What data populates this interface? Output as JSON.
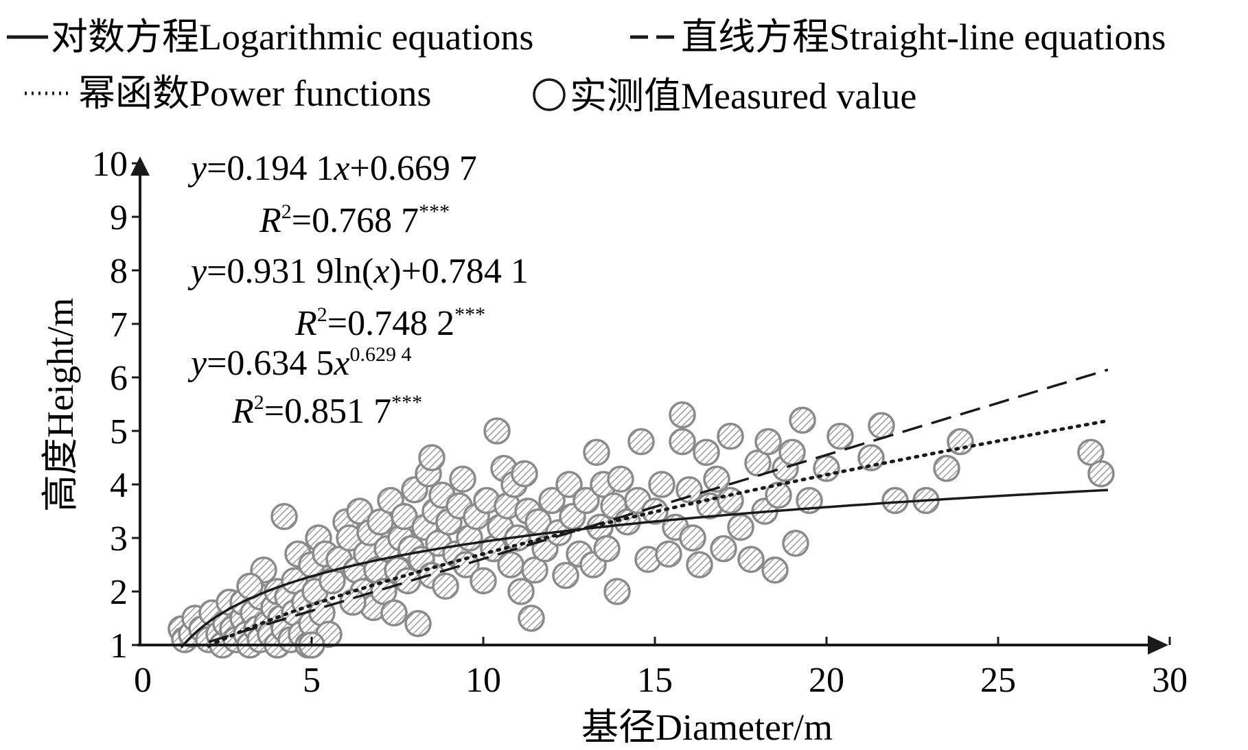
{
  "legend": {
    "log_label": "对数方程Logarithmic equations",
    "linear_label": "直线方程Straight-line equations",
    "power_label": "幂函数Power functions",
    "measured_label": "实测值Measured value"
  },
  "equations": {
    "linear_y": "y",
    "linear_rhs": "=0.194 1",
    "linear_x": "x",
    "linear_tail": "+0.669 7",
    "linear_r_R": "R",
    "linear_r_exp": "2",
    "linear_r_val": "=0.768 7",
    "linear_r_stars": "***",
    "log_y": "y",
    "log_rhs": "=0.931 9ln(",
    "log_x": "x",
    "log_tail": ")+0.784 1",
    "log_r_R": "R",
    "log_r_exp": "2",
    "log_r_val": "=0.748 2",
    "log_r_stars": "***",
    "power_y": "y",
    "power_rhs": "=0.634 5",
    "power_x": "x",
    "power_exp": "0.629 4",
    "power_r_R": "R",
    "power_r_exp": "2",
    "power_r_val": "=0.851 7",
    "power_r_stars": "***"
  },
  "chart_data": {
    "type": "scatter",
    "xlabel": "基径Diameter/m",
    "ylabel": "高度Height/m",
    "xlim": [
      0,
      30
    ],
    "ylim": [
      1,
      10
    ],
    "x_ticks": [
      "0",
      "5",
      "10",
      "15",
      "20",
      "25",
      "30"
    ],
    "y_ticks": [
      "1",
      "2",
      "3",
      "4",
      "5",
      "6",
      "7",
      "8",
      "9",
      "10"
    ],
    "grid": false,
    "legend_position": "top",
    "measured_color": "#8a8a8a",
    "fit_color": "#1a1a1a",
    "fits": [
      {
        "name": "对数方程Logarithmic equations",
        "form": "log",
        "a": 0.9319,
        "b": 0.7841,
        "r2": 0.7482,
        "x_range": [
          1.2,
          28.2
        ],
        "style": "solid"
      },
      {
        "name": "直线方程Straight-line equations",
        "form": "linear",
        "a": 0.1941,
        "b": 0.6697,
        "r2": 0.7687,
        "x_range": [
          2.0,
          28.2
        ],
        "style": "dashed"
      },
      {
        "name": "幂函数Power functions",
        "form": "power",
        "a": 0.6345,
        "b": 0.6294,
        "r2": 0.8517,
        "x_range": [
          2.0,
          28.2
        ],
        "style": "dotted"
      }
    ],
    "series": [
      {
        "name": "实测值Measured value",
        "points": [
          [
            1.2,
            1.3
          ],
          [
            1.3,
            1.1
          ],
          [
            1.5,
            1.2
          ],
          [
            1.6,
            1.5
          ],
          [
            1.8,
            1.3
          ],
          [
            2.0,
            1.1
          ],
          [
            2.1,
            1.6
          ],
          [
            2.3,
            1.2
          ],
          [
            2.4,
            1.0
          ],
          [
            2.5,
            1.4
          ],
          [
            2.6,
            1.8
          ],
          [
            2.7,
            1.3
          ],
          [
            2.8,
            1.1
          ],
          [
            3.0,
            1.5
          ],
          [
            3.0,
            1.8
          ],
          [
            3.1,
            1.2
          ],
          [
            3.2,
            1.0
          ],
          [
            3.3,
            1.6
          ],
          [
            3.4,
            1.3
          ],
          [
            3.5,
            1.1
          ],
          [
            3.5,
            1.9
          ],
          [
            3.6,
            2.4
          ],
          [
            3.7,
            1.4
          ],
          [
            3.8,
            1.2
          ],
          [
            3.9,
            1.7
          ],
          [
            4.0,
            1.0
          ],
          [
            4.0,
            2.0
          ],
          [
            4.1,
            1.5
          ],
          [
            4.2,
            3.4
          ],
          [
            4.2,
            1.3
          ],
          [
            4.3,
            1.9
          ],
          [
            4.4,
            1.1
          ],
          [
            4.5,
            2.2
          ],
          [
            4.5,
            1.6
          ],
          [
            4.6,
            2.7
          ],
          [
            4.7,
            1.2
          ],
          [
            4.8,
            1.8
          ],
          [
            4.9,
            1.0
          ],
          [
            5.0,
            2.5
          ],
          [
            5.0,
            1.4
          ],
          [
            5.1,
            2.0
          ],
          [
            5.2,
            3.0
          ],
          [
            5.3,
            1.6
          ],
          [
            5.4,
            2.7
          ],
          [
            5.5,
            1.2
          ],
          [
            5.6,
            2.2
          ],
          [
            5.8,
            2.6
          ],
          [
            6.0,
            3.3
          ],
          [
            6.1,
            3.0
          ],
          [
            6.3,
            2.4
          ],
          [
            6.4,
            3.5
          ],
          [
            6.5,
            2.0
          ],
          [
            6.6,
            2.7
          ],
          [
            6.7,
            3.1
          ],
          [
            6.8,
            1.7
          ],
          [
            6.9,
            2.4
          ],
          [
            7.0,
            3.3
          ],
          [
            7.1,
            2.0
          ],
          [
            7.2,
            2.8
          ],
          [
            7.3,
            3.7
          ],
          [
            7.4,
            1.6
          ],
          [
            7.5,
            2.4
          ],
          [
            7.6,
            3.0
          ],
          [
            7.7,
            3.4
          ],
          [
            7.8,
            2.2
          ],
          [
            7.9,
            2.8
          ],
          [
            8.0,
            3.9
          ],
          [
            8.1,
            1.4
          ],
          [
            8.2,
            2.6
          ],
          [
            8.3,
            3.2
          ],
          [
            8.4,
            4.2
          ],
          [
            8.5,
            4.5
          ],
          [
            8.5,
            2.3
          ],
          [
            8.6,
            3.5
          ],
          [
            8.7,
            2.9
          ],
          [
            8.8,
            3.8
          ],
          [
            8.9,
            2.1
          ],
          [
            9.0,
            3.3
          ],
          [
            9.2,
            2.7
          ],
          [
            9.3,
            3.6
          ],
          [
            9.4,
            4.1
          ],
          [
            9.5,
            2.5
          ],
          [
            9.6,
            3.0
          ],
          [
            9.8,
            3.4
          ],
          [
            10.0,
            2.2
          ],
          [
            10.1,
            3.7
          ],
          [
            10.3,
            2.8
          ],
          [
            10.4,
            5.0
          ],
          [
            10.5,
            3.2
          ],
          [
            10.6,
            4.3
          ],
          [
            10.7,
            3.6
          ],
          [
            10.8,
            2.5
          ],
          [
            10.9,
            4.0
          ],
          [
            11.0,
            3.0
          ],
          [
            11.1,
            2.0
          ],
          [
            11.2,
            4.2
          ],
          [
            11.3,
            3.5
          ],
          [
            11.4,
            1.5
          ],
          [
            11.5,
            2.4
          ],
          [
            11.6,
            3.3
          ],
          [
            11.8,
            2.8
          ],
          [
            12.0,
            3.7
          ],
          [
            12.2,
            3.1
          ],
          [
            12.4,
            2.3
          ],
          [
            12.5,
            4.0
          ],
          [
            12.6,
            3.4
          ],
          [
            12.8,
            2.7
          ],
          [
            13.0,
            3.7
          ],
          [
            13.2,
            2.5
          ],
          [
            13.3,
            4.6
          ],
          [
            13.4,
            3.2
          ],
          [
            13.5,
            4.0
          ],
          [
            13.6,
            2.8
          ],
          [
            13.8,
            3.6
          ],
          [
            13.9,
            2.0
          ],
          [
            14.0,
            4.1
          ],
          [
            14.2,
            3.3
          ],
          [
            14.5,
            3.7
          ],
          [
            14.6,
            4.8
          ],
          [
            14.8,
            2.6
          ],
          [
            15.0,
            3.5
          ],
          [
            15.2,
            4.0
          ],
          [
            15.4,
            2.7
          ],
          [
            15.6,
            3.2
          ],
          [
            15.8,
            5.3
          ],
          [
            15.8,
            4.8
          ],
          [
            16.0,
            3.9
          ],
          [
            16.1,
            3.0
          ],
          [
            16.3,
            2.5
          ],
          [
            16.5,
            4.6
          ],
          [
            16.6,
            3.6
          ],
          [
            16.8,
            4.1
          ],
          [
            17.0,
            2.8
          ],
          [
            17.2,
            3.7
          ],
          [
            17.2,
            4.9
          ],
          [
            17.5,
            3.2
          ],
          [
            17.8,
            2.6
          ],
          [
            18.0,
            4.4
          ],
          [
            18.2,
            3.5
          ],
          [
            18.3,
            4.8
          ],
          [
            18.5,
            2.4
          ],
          [
            18.6,
            3.8
          ],
          [
            18.8,
            4.3
          ],
          [
            19.0,
            4.6
          ],
          [
            19.1,
            2.9
          ],
          [
            19.3,
            5.2
          ],
          [
            19.5,
            3.7
          ],
          [
            20.0,
            4.3
          ],
          [
            20.4,
            4.9
          ],
          [
            21.3,
            4.5
          ],
          [
            21.6,
            5.1
          ],
          [
            22.0,
            3.7
          ],
          [
            22.9,
            3.7
          ],
          [
            23.5,
            4.3
          ],
          [
            23.9,
            4.8
          ],
          [
            27.7,
            4.6
          ],
          [
            28.0,
            4.2
          ],
          [
            5.0,
            1.0
          ],
          [
            3.2,
            2.1
          ],
          [
            6.2,
            1.8
          ]
        ]
      }
    ]
  }
}
